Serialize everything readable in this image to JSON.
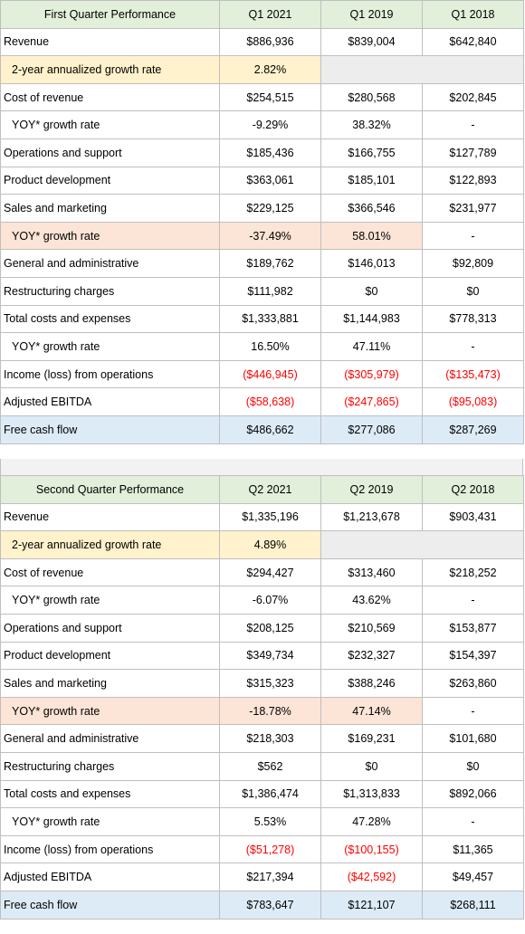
{
  "q1": {
    "title": "First Quarter Performance",
    "cols": [
      "Q1 2021",
      "Q1 2019",
      "Q1 2018"
    ],
    "revenue": {
      "label": "Revenue",
      "v": [
        "$886,936",
        "$839,004",
        "$642,840"
      ]
    },
    "growth2y": {
      "label": "2-year annualized growth rate",
      "v": "2.82%"
    },
    "cost_of_revenue": {
      "label": "Cost of revenue",
      "v": [
        "$254,515",
        "$280,568",
        "$202,845"
      ]
    },
    "yoy1": {
      "label": "YOY* growth rate",
      "v": [
        "-9.29%",
        "38.32%",
        "-"
      ]
    },
    "ops_support": {
      "label": "Operations and support",
      "v": [
        "$185,436",
        "$166,755",
        "$127,789"
      ]
    },
    "product_dev": {
      "label": "Product development",
      "v": [
        "$363,061",
        "$185,101",
        "$122,893"
      ]
    },
    "sales_marketing": {
      "label": "Sales and marketing",
      "v": [
        "$229,125",
        "$366,546",
        "$231,977"
      ]
    },
    "yoy2": {
      "label": "YOY* growth rate",
      "v": [
        "-37.49%",
        "58.01%",
        "-"
      ]
    },
    "gen_admin": {
      "label": "General and administrative",
      "v": [
        "$189,762",
        "$146,013",
        "$92,809"
      ]
    },
    "restructuring": {
      "label": "Restructuring charges",
      "v": [
        "$111,982",
        "$0",
        "$0"
      ]
    },
    "total_costs": {
      "label": "Total costs and expenses",
      "v": [
        "$1,333,881",
        "$1,144,983",
        "$778,313"
      ]
    },
    "yoy3": {
      "label": "YOY* growth rate",
      "v": [
        "16.50%",
        "47.11%",
        "-"
      ]
    },
    "income_ops": {
      "label": "Income (loss) from operations",
      "v": [
        "($446,945)",
        "($305,979)",
        "($135,473)"
      ]
    },
    "ebitda": {
      "label": "Adjusted EBITDA",
      "v": [
        "($58,638)",
        "($247,865)",
        "($95,083)"
      ]
    },
    "fcf": {
      "label": "Free cash flow",
      "v": [
        "$486,662",
        "$277,086",
        "$287,269"
      ]
    }
  },
  "q2": {
    "title": "Second Quarter Performance",
    "cols": [
      "Q2 2021",
      "Q2 2019",
      "Q2 2018"
    ],
    "revenue": {
      "label": "Revenue",
      "v": [
        "$1,335,196",
        "$1,213,678",
        "$903,431"
      ]
    },
    "growth2y": {
      "label": "2-year annualized growth rate",
      "v": "4.89%"
    },
    "cost_of_revenue": {
      "label": "Cost of revenue",
      "v": [
        "$294,427",
        "$313,460",
        "$218,252"
      ]
    },
    "yoy1": {
      "label": "YOY* growth rate",
      "v": [
        "-6.07%",
        "43.62%",
        "-"
      ]
    },
    "ops_support": {
      "label": "Operations and support",
      "v": [
        "$208,125",
        "$210,569",
        "$153,877"
      ]
    },
    "product_dev": {
      "label": "Product development",
      "v": [
        "$349,734",
        "$232,327",
        "$154,397"
      ]
    },
    "sales_marketing": {
      "label": "Sales and marketing",
      "v": [
        "$315,323",
        "$388,246",
        "$263,860"
      ]
    },
    "yoy2": {
      "label": "YOY* growth rate",
      "v": [
        "-18.78%",
        "47.14%",
        "-"
      ]
    },
    "gen_admin": {
      "label": "General and administrative",
      "v": [
        "$218,303",
        "$169,231",
        "$101,680"
      ]
    },
    "restructuring": {
      "label": "Restructuring charges",
      "v": [
        "$562",
        "$0",
        "$0"
      ]
    },
    "total_costs": {
      "label": "Total costs and expenses",
      "v": [
        "$1,386,474",
        "$1,313,833",
        "$892,066"
      ]
    },
    "yoy3": {
      "label": "YOY* growth rate",
      "v": [
        "5.53%",
        "47.28%",
        "-"
      ]
    },
    "income_ops": {
      "label": "Income (loss) from operations",
      "v": [
        "($51,278)",
        "($100,155)",
        "$11,365"
      ]
    },
    "ebitda": {
      "label": "Adjusted EBITDA",
      "v": [
        "$217,394",
        "($42,592)",
        "$49,457"
      ]
    },
    "fcf": {
      "label": "Free cash flow",
      "v": [
        "$783,647",
        "$121,107",
        "$268,111"
      ]
    }
  },
  "colors": {
    "header_green": "#e2efda",
    "highlight_yellow": "#fff2cc",
    "highlight_orange": "#fce4d6",
    "highlight_blue": "#ddebf7",
    "grey_fill": "#ededed",
    "negative_red": "#ff0000"
  }
}
